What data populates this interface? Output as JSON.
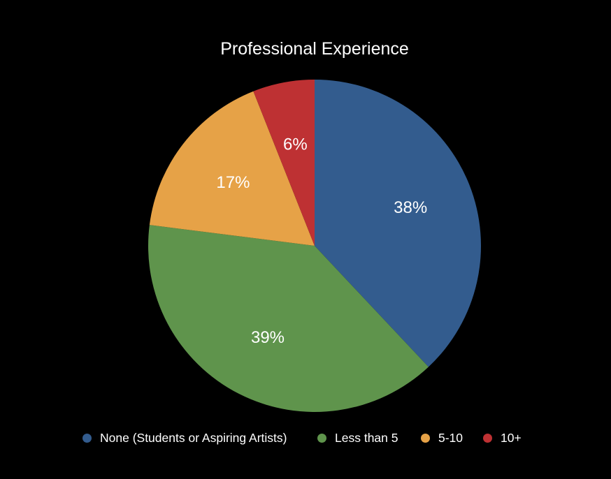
{
  "chart_data": {
    "type": "pie",
    "title": "Professional Experience",
    "categories": [
      "None (Students or Aspiring Artists)",
      "Less than 5",
      "5-10",
      "10+"
    ],
    "values": [
      38,
      39,
      17,
      6
    ],
    "value_labels": [
      "38%",
      "39%",
      "17%",
      "6%"
    ],
    "colors": [
      "#335c8e",
      "#5f944c",
      "#e6a247",
      "#be3133"
    ],
    "start_angle": "12 o'clock",
    "direction": "clockwise",
    "legend_position": "bottom"
  }
}
